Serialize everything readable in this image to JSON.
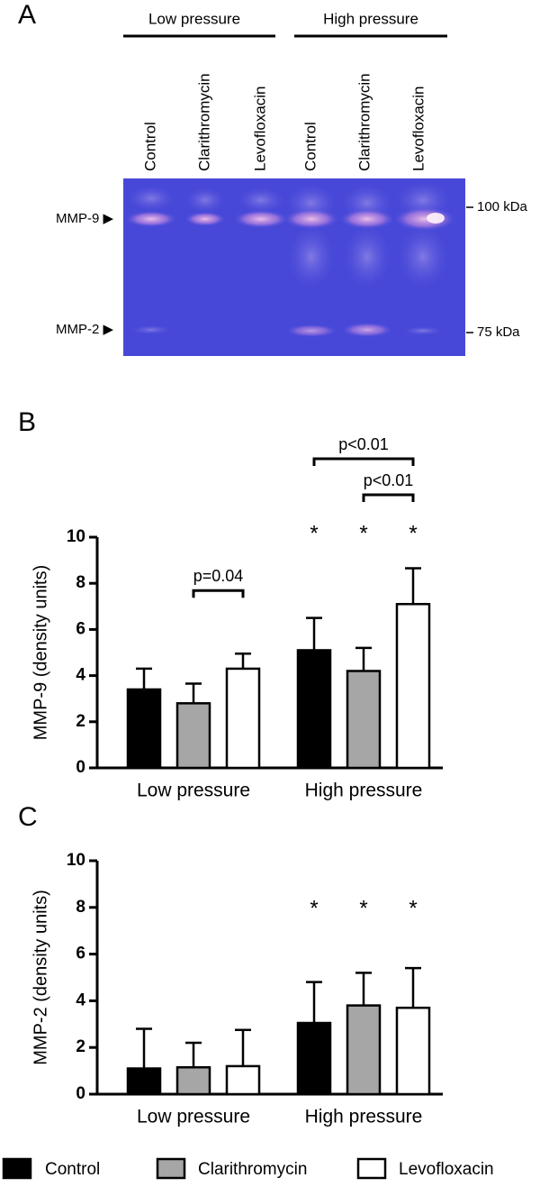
{
  "panel_a": {
    "label": "A",
    "groups": [
      "Low pressure",
      "High pressure"
    ],
    "lanes": [
      "Control",
      "Clarithromycin",
      "Levofloxacin",
      "Control",
      "Clarithromycin",
      "Levofloxacin"
    ],
    "bands": [
      "MMP-9 ▶",
      "MMP-2 ▶"
    ],
    "markers": [
      "100 kDa",
      "75 kDa"
    ]
  },
  "chart_data": [
    {
      "type": "bar",
      "panel_label": "B",
      "ylabel": "MMP-9 (density units)",
      "categories": [
        "Low pressure",
        "High pressure"
      ],
      "series": [
        {
          "name": "Control",
          "color": "#000000",
          "values": [
            3.4,
            5.1
          ],
          "errors": [
            0.9,
            1.4
          ],
          "labels": [
            null,
            "*"
          ]
        },
        {
          "name": "Clarithromycin",
          "color": "#a6a6a6",
          "values": [
            2.8,
            4.2
          ],
          "errors": [
            0.85,
            1.0
          ],
          "labels": [
            null,
            "*"
          ]
        },
        {
          "name": "Levofloxacin",
          "color": "#ffffff",
          "values": [
            4.3,
            7.1
          ],
          "errors": [
            0.65,
            1.55
          ],
          "labels": [
            null,
            "*"
          ]
        }
      ],
      "ylim": [
        0,
        10
      ],
      "yticks": [
        0,
        2,
        4,
        6,
        8,
        10
      ],
      "brackets": [
        {
          "label": "p=0.04",
          "category": 0,
          "series": [
            1,
            2
          ]
        },
        {
          "label": "p<0.01",
          "category": 1,
          "series": [
            1,
            2
          ]
        },
        {
          "label": "p<0.01",
          "category": 1,
          "series": [
            0,
            2
          ]
        }
      ]
    },
    {
      "type": "bar",
      "panel_label": "C",
      "ylabel": "MMP-2 (density units)",
      "categories": [
        "Low pressure",
        "High pressure"
      ],
      "series": [
        {
          "color": "#000000",
          "values": [
            1.1,
            3.05
          ],
          "errors": [
            1.7,
            1.75
          ],
          "labels": [
            null,
            "*"
          ]
        },
        {
          "color": "#a6a6a6",
          "values": [
            1.15,
            3.8
          ],
          "errors": [
            1.05,
            1.4
          ],
          "labels": [
            null,
            "*"
          ]
        },
        {
          "color": "#ffffff",
          "values": [
            1.2,
            3.7
          ],
          "errors": [
            1.55,
            1.7
          ],
          "labels": [
            null,
            "*"
          ]
        }
      ],
      "ylim": [
        0,
        10
      ],
      "yticks": [
        0,
        2,
        4,
        6,
        8,
        10
      ]
    }
  ]
}
